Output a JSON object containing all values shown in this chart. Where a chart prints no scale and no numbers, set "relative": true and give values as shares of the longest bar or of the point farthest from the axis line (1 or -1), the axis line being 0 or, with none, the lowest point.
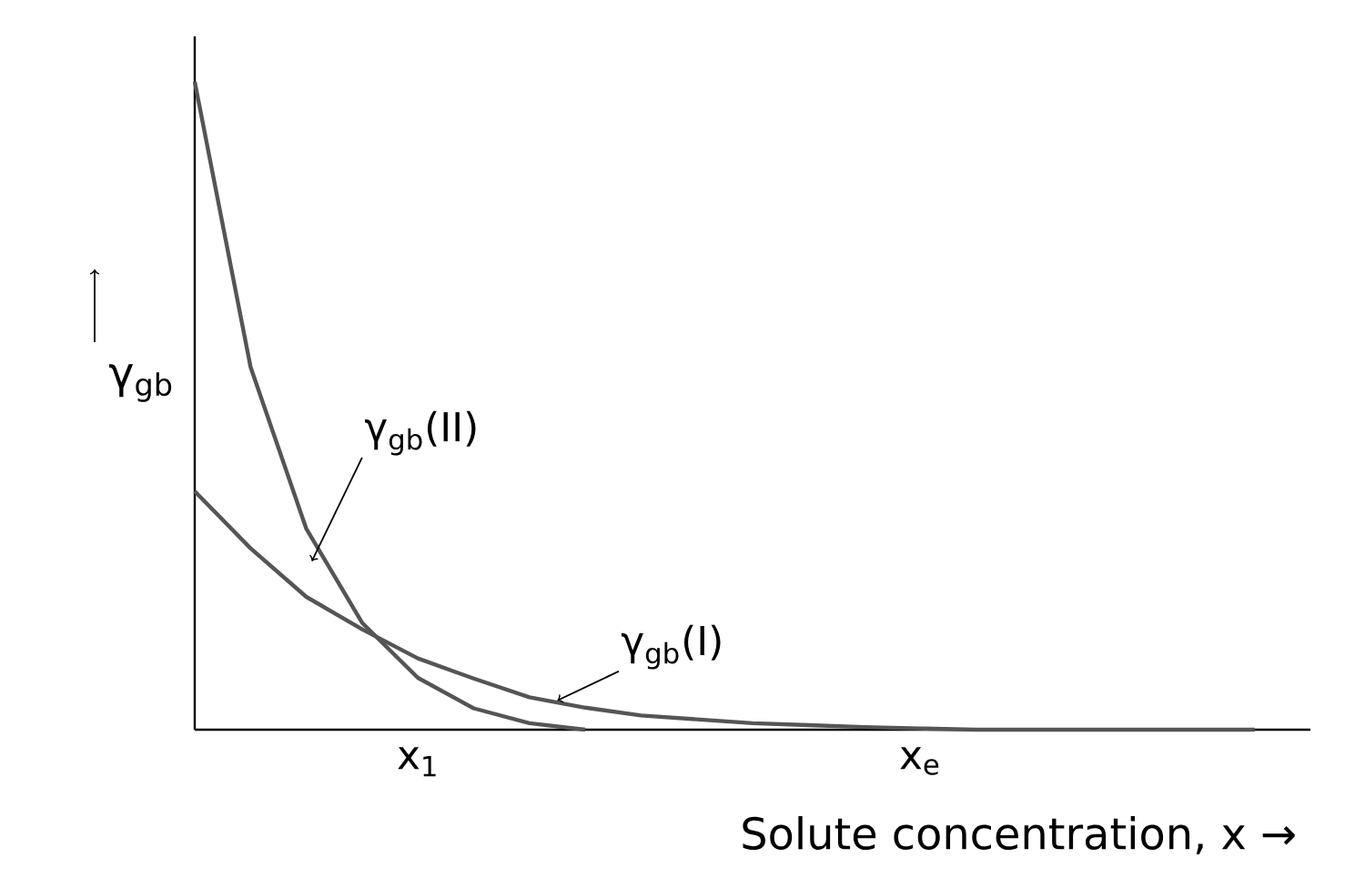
{
  "chart_data": {
    "type": "line",
    "relative": true,
    "xlabel": "Solute concentration, x →",
    "ylabel": "γ$_{gb}$",
    "categories": [
      null,
      null,
      null,
      null,
      "x$_{1}$",
      null,
      null,
      null,
      null,
      null,
      null,
      null,
      null,
      "x$_{e}$",
      null,
      null,
      null,
      null,
      null,
      null,
      null
    ],
    "series": [
      {
        "color": "#555555",
        "values": [
          1,
          0.56,
          0.31,
          0.165,
          0.08,
          0.033,
          0.01,
          0,
          null,
          null,
          null,
          null,
          null,
          null,
          null,
          null,
          null,
          null,
          null,
          null,
          null
        ]
      },
      {
        "color": "#555555",
        "values": [
          0.368,
          0.28,
          0.205,
          0.155,
          0.11,
          0.079,
          0.05,
          0.034,
          0.022,
          0.016,
          0.01,
          0.007,
          0.004,
          0.002,
          0,
          0,
          0,
          0,
          0,
          0,
          null
        ]
      }
    ],
    "annotations": [
      "γ$_{gb}$(II)",
      "γ$_{gb}$(I)"
    ],
    "marker": "none",
    "line_style": "solid"
  }
}
